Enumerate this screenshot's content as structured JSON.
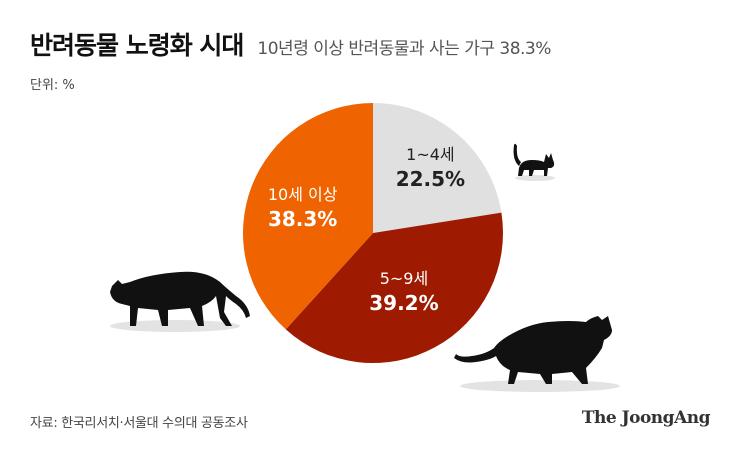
{
  "header": {
    "title": "반려동물 노령화 시대",
    "subtitle": "10년령 이상 반려동물과 사는 가구 38.3%"
  },
  "unit_label": "단위: %",
  "source": "자료: 한국리서치·서울대 수의대 공동조사",
  "brand": "The JoongAng",
  "chart_data": {
    "type": "pie",
    "title": "반려동물 노령화 시대",
    "subtitle": "10년령 이상 반려동물과 사는 가구 38.3%",
    "unit": "%",
    "slices": [
      {
        "label": "1~4세",
        "value": 22.5,
        "value_label": "22.5%",
        "color": "#e0e0e0",
        "text_color": "#222222"
      },
      {
        "label": "5~9세",
        "value": 39.2,
        "value_label": "39.2%",
        "color": "#9e1a00",
        "text_color": "#ffffff"
      },
      {
        "label": "10세 이상",
        "value": 38.3,
        "value_label": "38.3%",
        "color": "#ef6400",
        "text_color": "#ffffff"
      }
    ],
    "start_angle_deg": 0,
    "direction": "clockwise"
  }
}
